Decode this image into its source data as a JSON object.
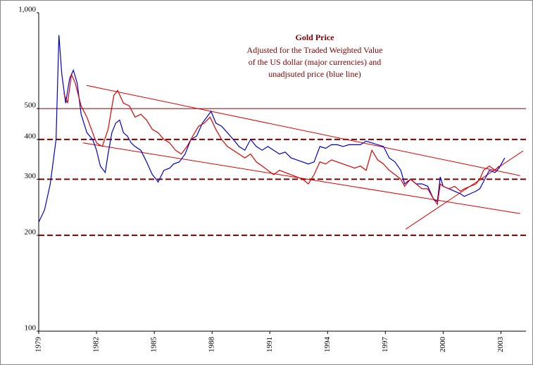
{
  "chart_data": {
    "type": "line",
    "title": "Gold Price",
    "subtitle": [
      "Adjusted for the Traded Weighted Value",
      "of the US dollar (major currencies) and",
      "unadjsuted price (blue line)"
    ],
    "log_scale": true,
    "grid": true,
    "xlim": [
      1979,
      2004.3
    ],
    "xticks": [
      1979,
      1982,
      1985,
      1988,
      1991,
      1994,
      1997,
      2000,
      2003
    ],
    "ylim": [
      100,
      1000
    ],
    "yticks": [
      100,
      200,
      300,
      400,
      500,
      {
        "value": 1000,
        "label": "1,000"
      }
    ],
    "series": [
      {
        "color": "#0000cc",
        "x": [
          1979.0,
          1979.3,
          1979.6,
          1979.9,
          1980.05,
          1980.2,
          1980.4,
          1980.6,
          1980.8,
          1981.0,
          1981.2,
          1981.5,
          1981.8,
          1982.0,
          1982.2,
          1982.45,
          1982.6,
          1982.8,
          1983.0,
          1983.2,
          1983.4,
          1983.6,
          1983.8,
          1984.0,
          1984.3,
          1984.6,
          1984.9,
          1985.1,
          1985.2,
          1985.5,
          1985.8,
          1986.0,
          1986.3,
          1986.6,
          1986.9,
          1987.2,
          1987.5,
          1987.95,
          1988.2,
          1988.5,
          1988.8,
          1989.1,
          1989.4,
          1989.7,
          1990.0,
          1990.3,
          1990.6,
          1990.9,
          1991.2,
          1991.5,
          1991.8,
          1992.1,
          1992.4,
          1992.7,
          1993.0,
          1993.3,
          1993.6,
          1993.9,
          1994.2,
          1994.5,
          1994.8,
          1995.1,
          1995.4,
          1995.7,
          1996.0,
          1996.3,
          1996.6,
          1996.9,
          1997.2,
          1997.5,
          1997.8,
          1998.0,
          1998.3,
          1998.6,
          1998.9,
          1999.2,
          1999.5,
          1999.7,
          1999.85,
          2000.0,
          2000.3,
          2000.6,
          2000.9,
          2001.1,
          2001.4,
          2001.7,
          2001.9,
          2002.1,
          2002.4,
          2002.7,
          2002.9,
          2003.2
        ],
        "values": [
          220,
          240,
          290,
          400,
          850,
          640,
          520,
          620,
          660,
          600,
          480,
          420,
          400,
          370,
          330,
          315,
          360,
          420,
          450,
          460,
          420,
          410,
          390,
          380,
          370,
          340,
          310,
          300,
          294,
          320,
          325,
          335,
          340,
          360,
          400,
          410,
          450,
          490,
          450,
          440,
          420,
          400,
          380,
          370,
          400,
          380,
          370,
          380,
          370,
          360,
          365,
          350,
          345,
          340,
          335,
          340,
          380,
          375,
          385,
          385,
          380,
          385,
          385,
          385,
          395,
          390,
          385,
          380,
          350,
          340,
          320,
          290,
          300,
          290,
          290,
          285,
          260,
          255,
          305,
          285,
          280,
          275,
          270,
          265,
          270,
          275,
          280,
          295,
          320,
          315,
          325,
          350
        ]
      },
      {
        "color": "#dd0000",
        "x": [
          1980.3,
          1980.5,
          1980.7,
          1980.9,
          1981.2,
          1981.5,
          1981.8,
          1982.0,
          1982.3,
          1982.6,
          1982.9,
          1983.1,
          1983.4,
          1983.7,
          1984.0,
          1984.3,
          1984.6,
          1984.9,
          1985.2,
          1985.5,
          1985.8,
          1986.1,
          1986.4,
          1986.7,
          1987.0,
          1987.3,
          1987.6,
          1987.9,
          1988.2,
          1988.5,
          1988.8,
          1989.1,
          1989.4,
          1989.7,
          1990.0,
          1990.3,
          1990.6,
          1990.9,
          1991.2,
          1991.5,
          1991.8,
          1992.1,
          1992.4,
          1992.7,
          1993.0,
          1993.3,
          1993.6,
          1993.9,
          1994.2,
          1994.5,
          1994.8,
          1995.1,
          1995.4,
          1995.7,
          1996.0,
          1996.3,
          1996.6,
          1996.9,
          1997.2,
          1997.5,
          1997.8,
          1998.0,
          1998.3,
          1998.6,
          1998.9,
          1999.2,
          1999.5,
          1999.7,
          1999.85,
          2000.0,
          2000.3,
          2000.6,
          2000.9,
          2001.1,
          2001.4,
          2001.7,
          2001.9,
          2002.1,
          2002.4,
          2002.7,
          2002.9
        ],
        "values": [
          560,
          520,
          640,
          600,
          510,
          470,
          420,
          390,
          380,
          430,
          550,
          570,
          520,
          510,
          470,
          480,
          460,
          430,
          420,
          400,
          390,
          370,
          360,
          380,
          410,
          440,
          450,
          470,
          430,
          400,
          380,
          370,
          360,
          350,
          360,
          340,
          330,
          320,
          310,
          320,
          315,
          310,
          305,
          300,
          290,
          310,
          340,
          335,
          345,
          340,
          335,
          330,
          325,
          330,
          320,
          370,
          345,
          335,
          320,
          310,
          300,
          285,
          300,
          290,
          280,
          280,
          260,
          250,
          290,
          285,
          280,
          285,
          275,
          280,
          285,
          290,
          300,
          320,
          330,
          320,
          330
        ]
      }
    ],
    "trend_lines": [
      {
        "x": [
          1981.48,
          2004.0
        ],
        "values": [
          591,
          308
        ]
      },
      {
        "x": [
          1981.3,
          2004.0
        ],
        "values": [
          390,
          234
        ]
      },
      {
        "x": [
          1998.05,
          2004.15
        ],
        "values": [
          209,
          368
        ]
      }
    ]
  }
}
